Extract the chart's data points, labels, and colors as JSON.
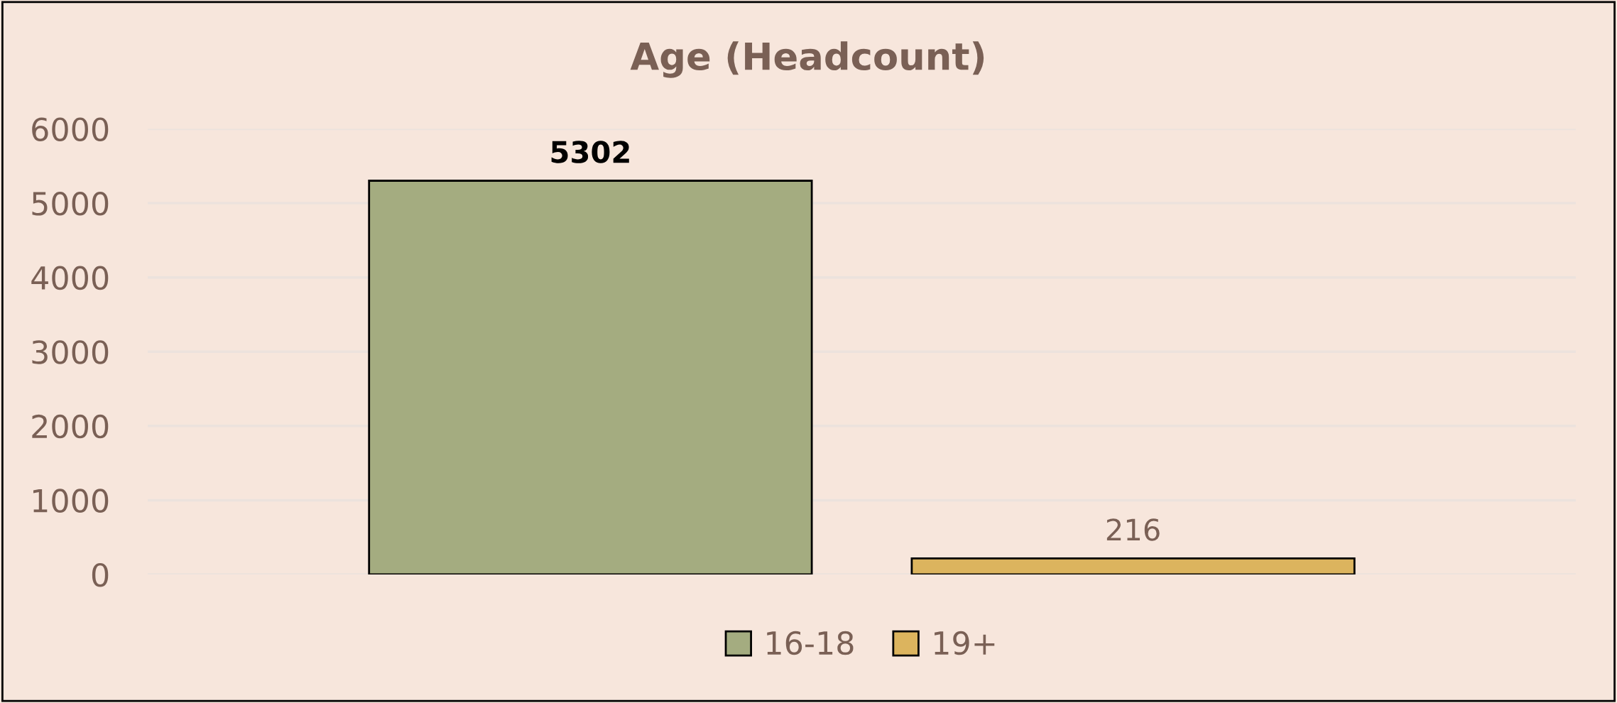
{
  "chart_data": {
    "type": "bar",
    "title": "Age (Headcount)",
    "categories": [
      null
    ],
    "series": [
      {
        "name": "16-18",
        "color": "#a4ac80",
        "values": [
          5302
        ]
      },
      {
        "name": "19+",
        "color": "#dcb45e",
        "values": [
          216
        ]
      }
    ],
    "ylim": [
      0,
      6000
    ],
    "yticks": [
      0,
      1000,
      2000,
      3000,
      4000,
      5000,
      6000
    ],
    "grid": "y",
    "legend": "bottom",
    "data_labels": true
  }
}
